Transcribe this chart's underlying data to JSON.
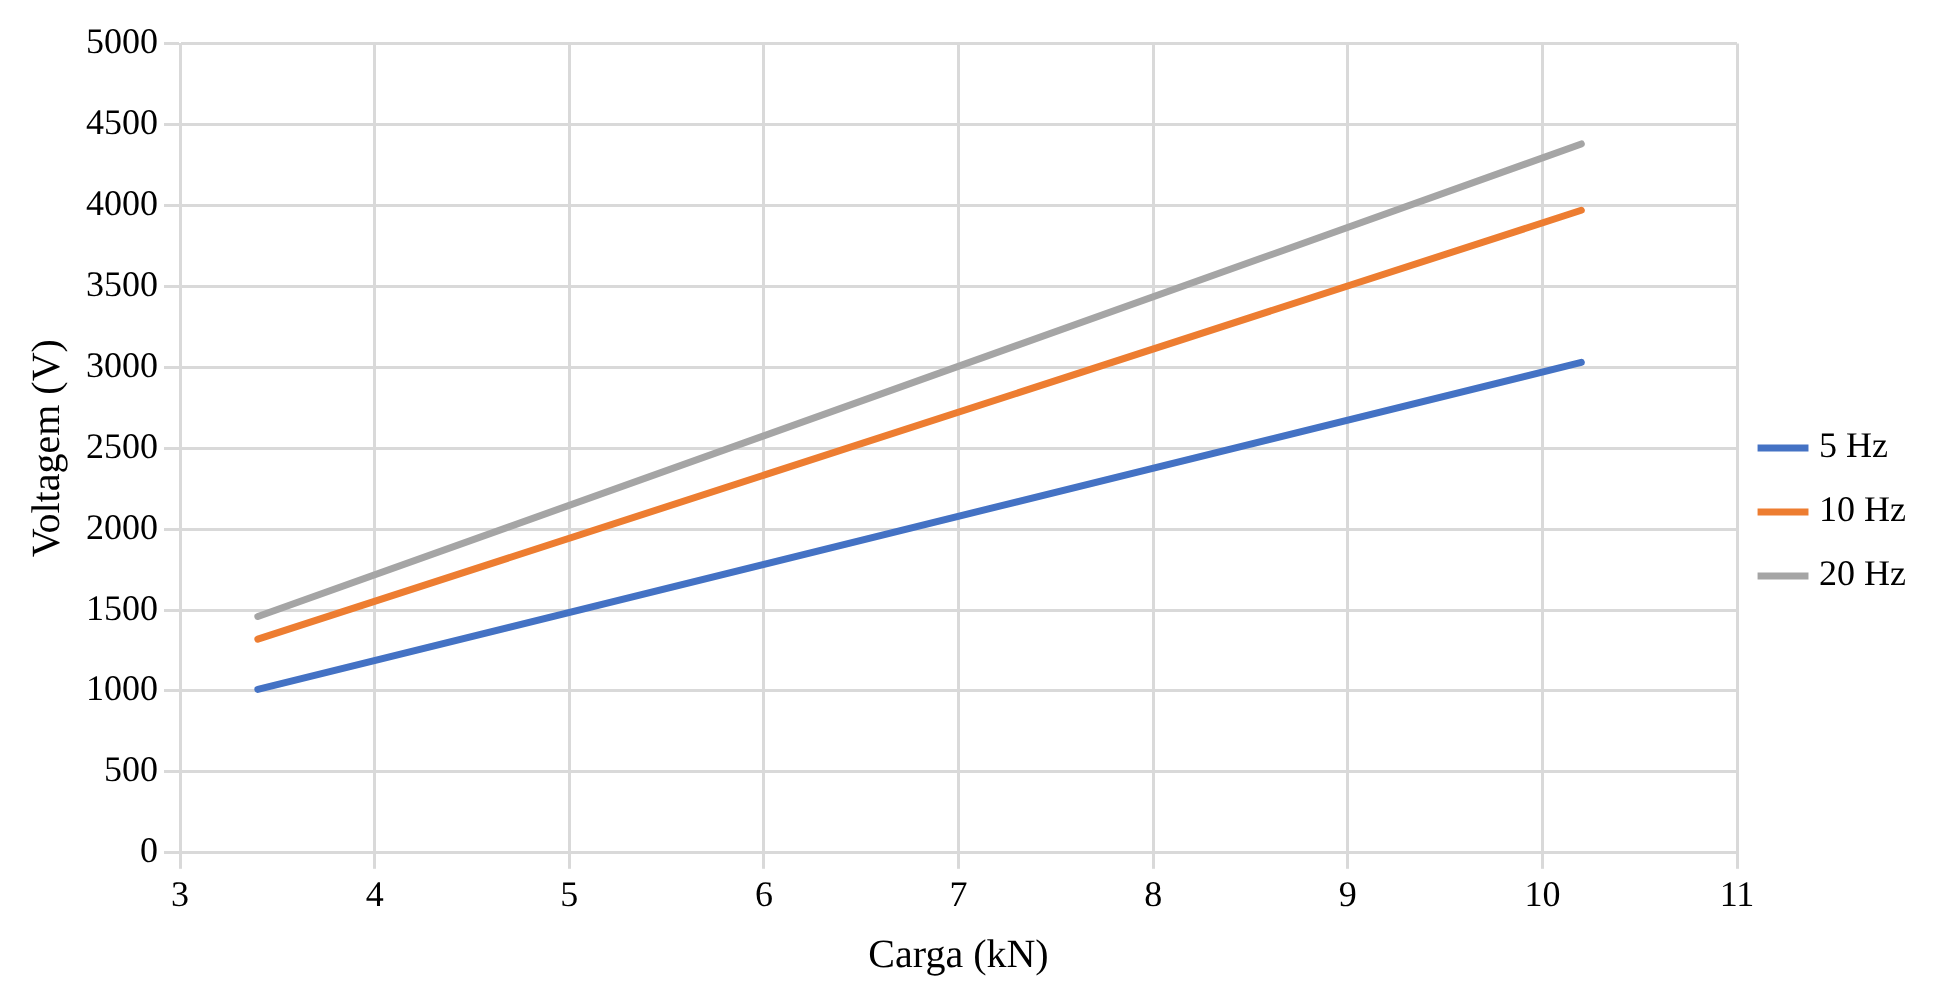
{
  "chart_data": {
    "type": "line",
    "xlabel": "Carga (kN)",
    "ylabel": "Voltagem (V)",
    "xlim": [
      3,
      11
    ],
    "xticks": [
      3,
      4,
      5,
      6,
      7,
      8,
      9,
      10,
      11
    ],
    "ylim": [
      0,
      5000
    ],
    "yticks": [
      0,
      500,
      1000,
      1500,
      2000,
      2500,
      3000,
      3500,
      4000,
      4500,
      5000
    ],
    "x": [
      3.4,
      10.2
    ],
    "series": [
      {
        "name": "5 Hz",
        "color": "#4472c4",
        "values": [
          1010,
          3030
        ]
      },
      {
        "name": "10 Hz",
        "color": "#ed7d31",
        "values": [
          1320,
          3970
        ]
      },
      {
        "name": "20 Hz",
        "color": "#a5a5a5",
        "values": [
          1460,
          4380
        ]
      }
    ],
    "grid": true,
    "legend": "right",
    "marker": "none",
    "line_style": "solid"
  }
}
